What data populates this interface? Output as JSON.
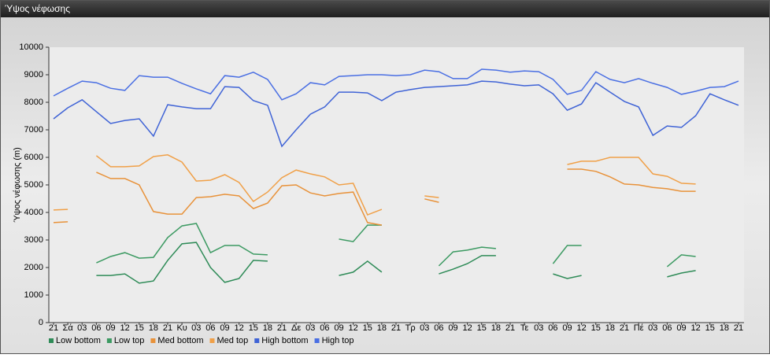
{
  "chart_data": {
    "type": "line",
    "title": "Ύψος νέφωσης",
    "y_label": "Ύψος νέφωσης (m)",
    "categories": [
      "21",
      "Σά",
      "03",
      "06",
      "09",
      "12",
      "15",
      "18",
      "21",
      "Κυ",
      "03",
      "06",
      "09",
      "12",
      "15",
      "18",
      "21",
      "Δε",
      "03",
      "06",
      "09",
      "12",
      "15",
      "18",
      "21",
      "Τρ",
      "03",
      "06",
      "09",
      "12",
      "15",
      "18",
      "21",
      "Τε",
      "03",
      "06",
      "09",
      "12",
      "15",
      "18",
      "21",
      "Πέ",
      "03",
      "06",
      "09",
      "12",
      "15",
      "18",
      "21"
    ],
    "series": [
      {
        "name": "Low bottom",
        "color": "#2e8b57",
        "values": [
          null,
          null,
          null,
          1710,
          1710,
          1770,
          1430,
          1510,
          2260,
          2860,
          2910,
          2000,
          1460,
          1600,
          2260,
          2230,
          null,
          null,
          null,
          null,
          1710,
          1830,
          2230,
          1830,
          null,
          null,
          null,
          1770,
          1940,
          2140,
          2430,
          2430,
          null,
          null,
          null,
          1770,
          1600,
          1710,
          null,
          null,
          null,
          null,
          null,
          1660,
          1800,
          1890,
          null,
          null,
          null
        ]
      },
      {
        "name": "Low top",
        "color": "#3c9a62",
        "values": [
          null,
          null,
          null,
          2170,
          2400,
          2540,
          2340,
          2370,
          3090,
          3510,
          3600,
          2540,
          2800,
          2800,
          2490,
          2460,
          null,
          null,
          null,
          null,
          3030,
          2940,
          3540,
          3540,
          null,
          null,
          null,
          2060,
          2570,
          2630,
          2740,
          2690,
          null,
          null,
          null,
          2140,
          2800,
          2800,
          null,
          null,
          null,
          null,
          null,
          2030,
          2460,
          2400,
          null,
          null,
          null
        ]
      },
      {
        "name": "Med bottom",
        "color": "#e8923a",
        "values": [
          3630,
          3660,
          null,
          5460,
          5230,
          5230,
          5000,
          4030,
          3940,
          3940,
          4540,
          4570,
          4660,
          4600,
          4140,
          4340,
          4970,
          5000,
          4710,
          4600,
          4690,
          4740,
          3630,
          3540,
          null,
          null,
          4490,
          4370,
          null,
          null,
          null,
          null,
          null,
          null,
          null,
          null,
          5570,
          5570,
          5490,
          5290,
          5030,
          5000,
          4910,
          4860,
          4770,
          4770,
          null,
          null,
          null
        ]
      },
      {
        "name": "Med top",
        "color": "#f0a048",
        "values": [
          4090,
          4110,
          null,
          6060,
          5660,
          5660,
          5690,
          6030,
          6090,
          5830,
          5140,
          5170,
          5370,
          5090,
          4400,
          4740,
          5260,
          5540,
          5400,
          5290,
          5000,
          5060,
          3910,
          4110,
          null,
          null,
          4600,
          4540,
          null,
          null,
          null,
          null,
          null,
          null,
          null,
          null,
          5740,
          5860,
          5860,
          6000,
          6000,
          6000,
          5400,
          5310,
          5060,
          5030,
          null,
          null,
          null
        ]
      },
      {
        "name": "High bottom",
        "color": "#3f63d6",
        "values": [
          7400,
          7800,
          8090,
          7660,
          7230,
          7340,
          7400,
          6770,
          7910,
          7830,
          7770,
          7770,
          8570,
          8540,
          8060,
          7890,
          6400,
          7000,
          7570,
          7830,
          8370,
          8370,
          8340,
          8060,
          8370,
          8460,
          8540,
          8570,
          8600,
          8630,
          8770,
          8740,
          8660,
          8600,
          8630,
          8310,
          7710,
          7940,
          8710,
          8370,
          8030,
          7830,
          6800,
          7140,
          7090,
          7510,
          8310,
          8090,
          7890
        ]
      },
      {
        "name": "High top",
        "color": "#4a6fe3",
        "values": [
          8230,
          8510,
          8770,
          8710,
          8510,
          8430,
          8970,
          8910,
          8910,
          8690,
          8490,
          8310,
          8970,
          8910,
          9090,
          8830,
          8090,
          8310,
          8710,
          8630,
          8940,
          8970,
          9000,
          9000,
          8970,
          9000,
          9170,
          9110,
          8860,
          8860,
          9200,
          9170,
          9090,
          9140,
          9110,
          8830,
          8290,
          8430,
          9110,
          8830,
          8710,
          8860,
          8690,
          8540,
          8290,
          8400,
          8540,
          8570,
          8770
        ]
      }
    ],
    "ylim": [
      0,
      10000
    ],
    "yticks": [
      0,
      1000,
      2000,
      3000,
      4000,
      5000,
      6000,
      7000,
      8000,
      9000,
      10000
    ],
    "grid": false
  }
}
